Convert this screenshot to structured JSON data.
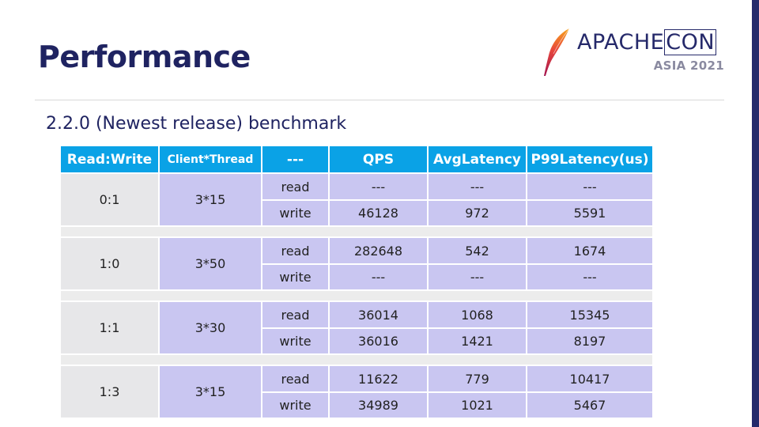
{
  "slide": {
    "title": "Performance",
    "subtitle": "2.2.0 (Newest release) benchmark"
  },
  "logo": {
    "name_main": "APACHE",
    "name_box": "CON",
    "event": "ASIA 2021",
    "icon": "feather-icon",
    "colors": {
      "text": "#25296a",
      "feather_start": "#f7a21b",
      "feather_end": "#c2185b"
    }
  },
  "table": {
    "headers": [
      "Read:Write",
      "Client*Thread",
      "---",
      "QPS",
      "AvgLatency",
      "P99Latency(us)"
    ],
    "groups": [
      {
        "ratio": "0:1",
        "client_thread": "3*15",
        "rows": [
          {
            "op": "read",
            "qps": "---",
            "avg": "---",
            "p99": "---"
          },
          {
            "op": "write",
            "qps": "46128",
            "avg": "972",
            "p99": "5591"
          }
        ]
      },
      {
        "ratio": "1:0",
        "client_thread": "3*50",
        "rows": [
          {
            "op": "read",
            "qps": "282648",
            "avg": "542",
            "p99": "1674"
          },
          {
            "op": "write",
            "qps": "---",
            "avg": "---",
            "p99": "---"
          }
        ]
      },
      {
        "ratio": "1:1",
        "client_thread": "3*30",
        "rows": [
          {
            "op": "read",
            "qps": "36014",
            "avg": "1068",
            "p99": "15345"
          },
          {
            "op": "write",
            "qps": "36016",
            "avg": "1421",
            "p99": "8197"
          }
        ]
      },
      {
        "ratio": "1:3",
        "client_thread": "3*15",
        "rows": [
          {
            "op": "read",
            "qps": "11622",
            "avg": "779",
            "p99": "10417"
          },
          {
            "op": "write",
            "qps": "34989",
            "avg": "1021",
            "p99": "5467"
          }
        ]
      }
    ],
    "colors": {
      "header": "#0aa2e6",
      "ratio_cell": "#e7e7e9",
      "data_cell": "#c9c6f1",
      "separator": "#ececec"
    }
  },
  "theme": {
    "title_color": "#1f2361",
    "right_bar": "#242a6b"
  }
}
